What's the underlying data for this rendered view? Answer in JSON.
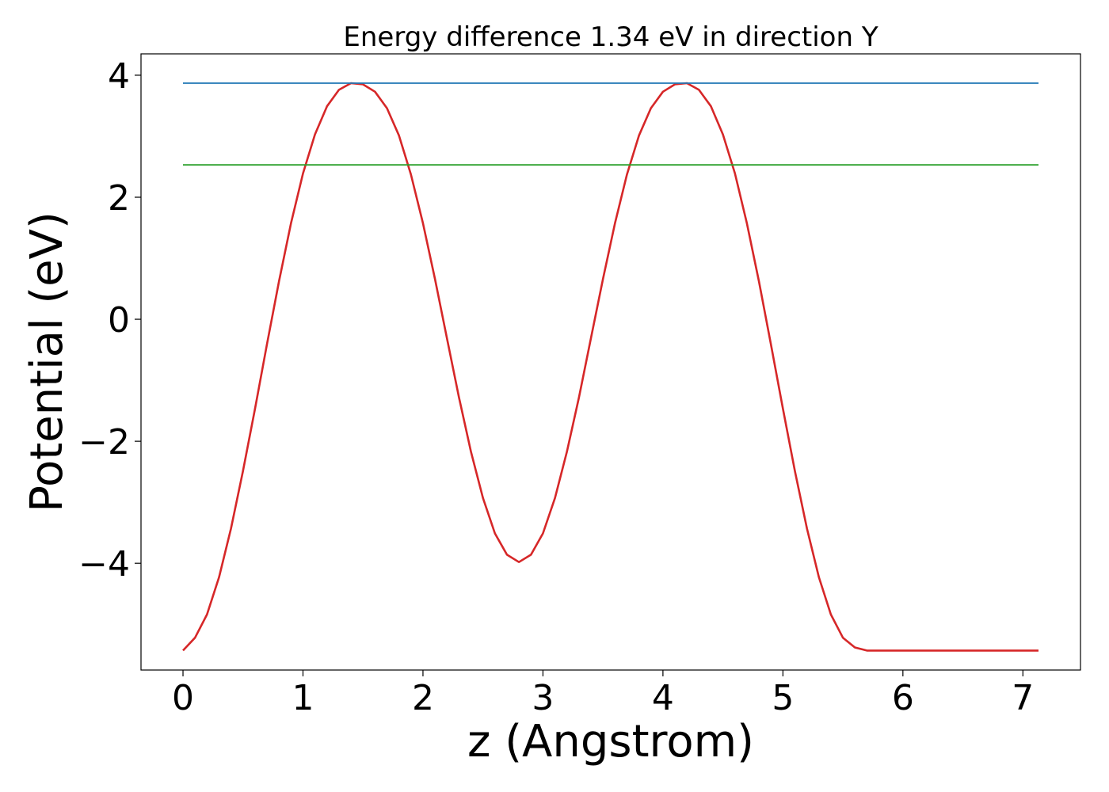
{
  "chart_data": {
    "type": "line",
    "title": "Energy difference 1.34 eV in direction Y",
    "xlabel": "z (Angstrom)",
    "ylabel": "Potential (eV)",
    "xlim": [
      -0.35,
      7.48
    ],
    "ylim": [
      -5.75,
      4.35
    ],
    "xticks": [
      0,
      1,
      2,
      3,
      4,
      5,
      6,
      7
    ],
    "xtick_labels": [
      "0",
      "1",
      "2",
      "3",
      "4",
      "5",
      "6",
      "7"
    ],
    "yticks": [
      -4,
      -2,
      0,
      2,
      4
    ],
    "ytick_labels": [
      "−4",
      "−2",
      "0",
      "2",
      "4"
    ],
    "grid": false,
    "legend": "none",
    "series": [
      {
        "color": "#d62728",
        "x": [
          0.0,
          0.1,
          0.2,
          0.3,
          0.4,
          0.5,
          0.6,
          0.7,
          0.8,
          0.9,
          1.0,
          1.1,
          1.2,
          1.3,
          1.4,
          1.5,
          1.6,
          1.7,
          1.8,
          1.9,
          2.0,
          2.1,
          2.2,
          2.3,
          2.4,
          2.5,
          2.6,
          2.7,
          2.8,
          2.9,
          3.0,
          3.1,
          3.2,
          3.3,
          3.4,
          3.5,
          3.6,
          3.7,
          3.8,
          3.9,
          4.0,
          4.1,
          4.2,
          4.3,
          4.4,
          4.5,
          4.6,
          4.7,
          4.8,
          4.9,
          5.0,
          5.1,
          5.2,
          5.3,
          5.4,
          5.5,
          5.6,
          5.7,
          5.8,
          5.9,
          6.0,
          6.1,
          6.2,
          6.3,
          6.4,
          6.5,
          6.6,
          6.7,
          6.8,
          6.9,
          7.0,
          7.1,
          7.13
        ],
        "y": [
          -5.43,
          -5.22,
          -4.84,
          -4.23,
          -3.43,
          -2.49,
          -1.47,
          -0.41,
          0.62,
          1.57,
          2.39,
          3.03,
          3.49,
          3.76,
          3.87,
          3.85,
          3.73,
          3.46,
          3.01,
          2.37,
          1.57,
          0.66,
          -0.31,
          -1.28,
          -2.17,
          -2.93,
          -3.51,
          -3.86,
          -3.98,
          -3.86,
          -3.51,
          -2.93,
          -2.17,
          -1.28,
          -0.31,
          0.66,
          1.57,
          2.37,
          3.01,
          3.46,
          3.73,
          3.85,
          3.87,
          3.76,
          3.49,
          3.03,
          2.39,
          1.57,
          0.62,
          -0.41,
          -1.47,
          -2.49,
          -3.43,
          -4.23,
          -4.84,
          -5.22,
          -5.38,
          -5.43,
          -5.43,
          -5.43,
          -5.43,
          -5.43,
          -5.43,
          -5.43,
          -5.43,
          -5.43,
          -5.43,
          -5.43,
          -5.43,
          -5.43,
          -5.43,
          -5.43,
          -5.43
        ]
      },
      {
        "color": "#1f77b4",
        "x": [
          0.0,
          7.13
        ],
        "y": [
          3.87,
          3.87
        ]
      },
      {
        "color": "#2ca02c",
        "x": [
          0.0,
          7.13
        ],
        "y": [
          2.53,
          2.53
        ]
      }
    ]
  }
}
